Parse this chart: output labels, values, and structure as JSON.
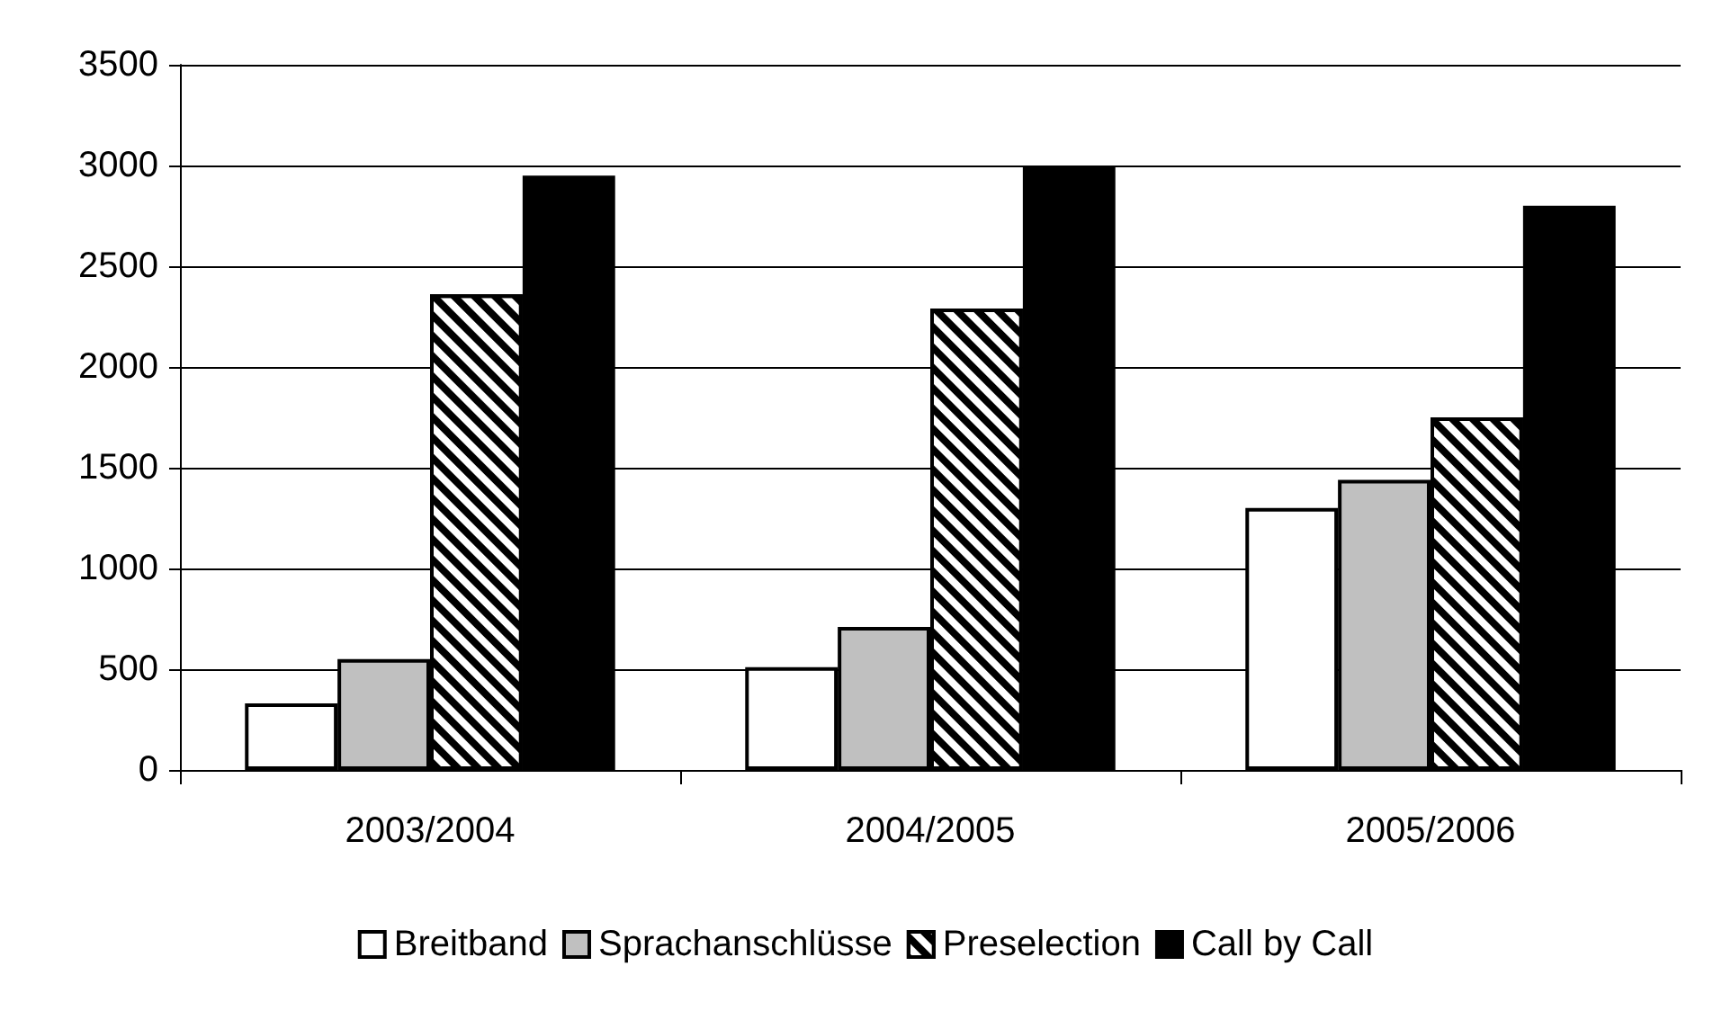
{
  "chart_data": {
    "type": "bar",
    "categories": [
      "2003/2004",
      "2004/2005",
      "2005/2006"
    ],
    "series": [
      {
        "name": "Breitband",
        "color": "#ffffff",
        "values": [
          330,
          510,
          1300
        ]
      },
      {
        "name": "Sprachanschlüsse",
        "color": "#c0c0c0",
        "values": [
          550,
          710,
          1440
        ]
      },
      {
        "name": "Preselection",
        "color": "#ffffff",
        "values": [
          2360,
          2290,
          1750
        ]
      },
      {
        "name": "Call by Call",
        "color": "#000000",
        "values": [
          2950,
          3000,
          2800
        ]
      }
    ],
    "ylim": [
      0,
      3500
    ],
    "yticks": [
      0,
      500,
      1000,
      1500,
      2000,
      2500,
      3000,
      3500
    ],
    "grid": "y",
    "legend": "bottom"
  }
}
